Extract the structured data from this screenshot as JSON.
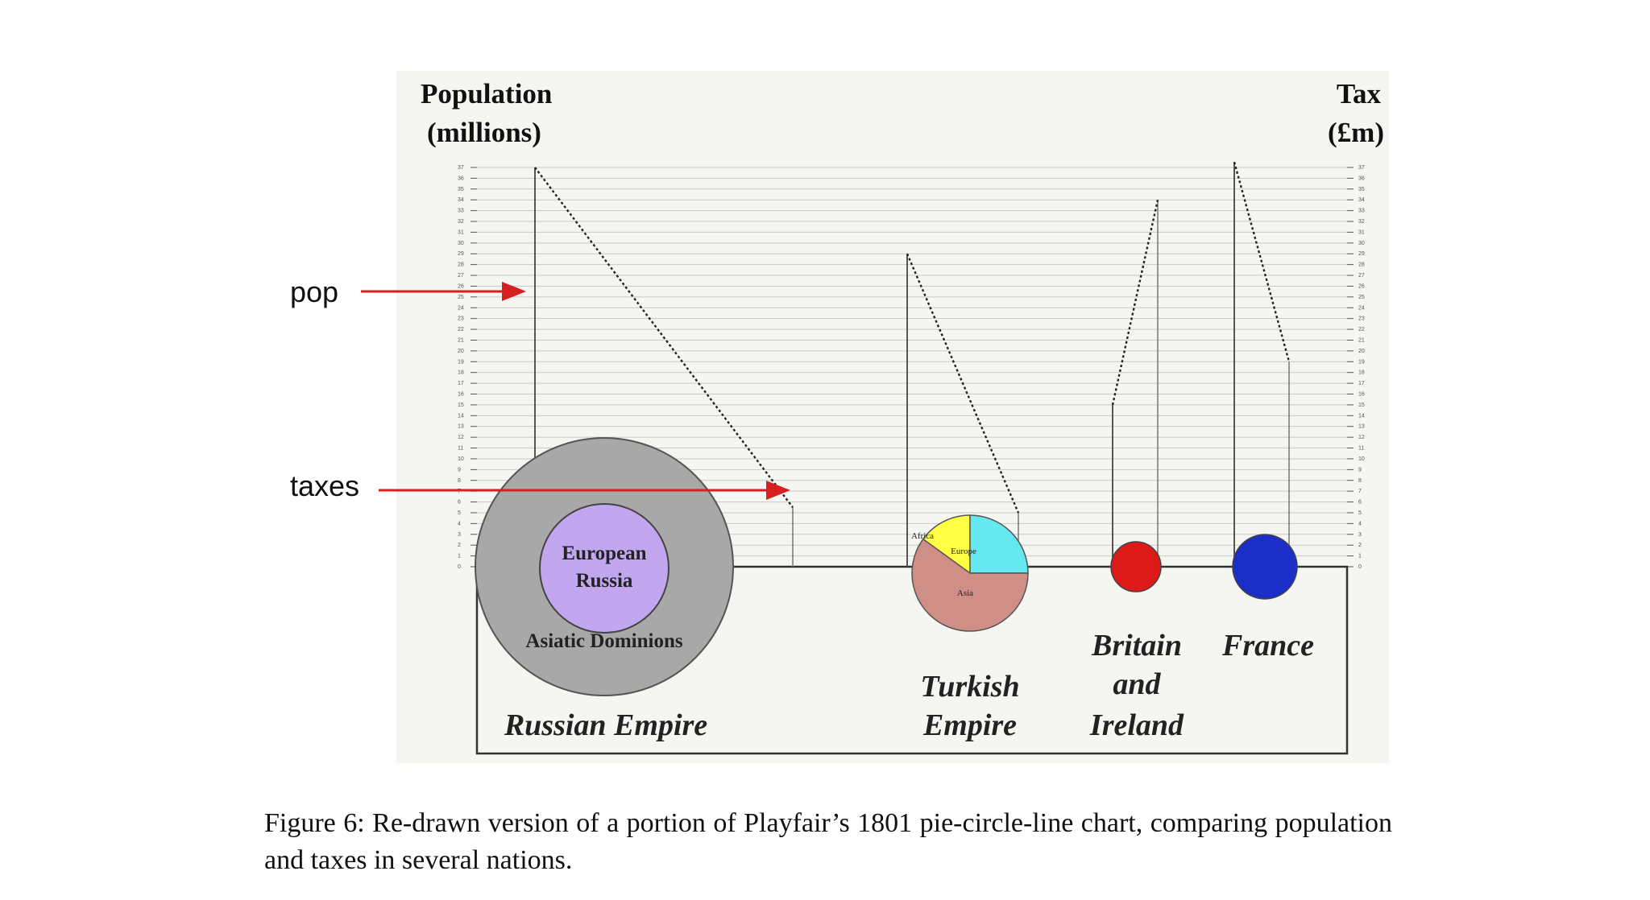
{
  "figure": {
    "left_axis_title": [
      "Population",
      "(millions)"
    ],
    "right_axis_title": [
      "Tax",
      "(£m)"
    ],
    "annotations": {
      "pop": "pop",
      "taxes": "taxes"
    },
    "colors": {
      "russia_outer": "#a8a8a8",
      "russia_inner": "#c2a6f0",
      "turkey_africa": "#ffff44",
      "turkey_europe": "#66e8f0",
      "turkey_asia": "#cf8e86",
      "britain": "#dd1a1a",
      "france": "#1c2ec8",
      "annotation_arrow": "#d42020"
    }
  },
  "chart_data": {
    "type": "pie-circle-line",
    "left_axis_label": "Population (millions)",
    "right_axis_label": "Tax (£m)",
    "population_axis_range": [
      0,
      37
    ],
    "tax_axis_range": [
      0,
      37
    ],
    "grid": true,
    "countries": [
      {
        "name": "Russian Empire",
        "label_lines": [
          "Russian Empire"
        ],
        "population": 37,
        "taxes": 5.5,
        "area_circle": {
          "outer": "Asiatic Dominions",
          "inner": "European Russia",
          "inner_lines": [
            "European",
            "Russia"
          ]
        }
      },
      {
        "name": "Turkish Empire",
        "label_lines": [
          "Turkish",
          "Empire"
        ],
        "population": 29,
        "taxes": 5,
        "pie": [
          {
            "label": "Africa",
            "share": 0.15
          },
          {
            "label": "Europe",
            "share": 0.25
          },
          {
            "label": "Asia",
            "share": 0.6
          }
        ]
      },
      {
        "name": "Britain and Ireland",
        "label_lines": [
          "Britain",
          "and",
          "Ireland"
        ],
        "population": 15,
        "taxes": 34
      },
      {
        "name": "France",
        "label_lines": [
          "France"
        ],
        "population": 37.5,
        "taxes": 19
      }
    ]
  },
  "caption": "Figure 6:  Re-drawn version of a portion of Playfair’s 1801 pie-circle-line chart, comparing population and taxes in several nations."
}
